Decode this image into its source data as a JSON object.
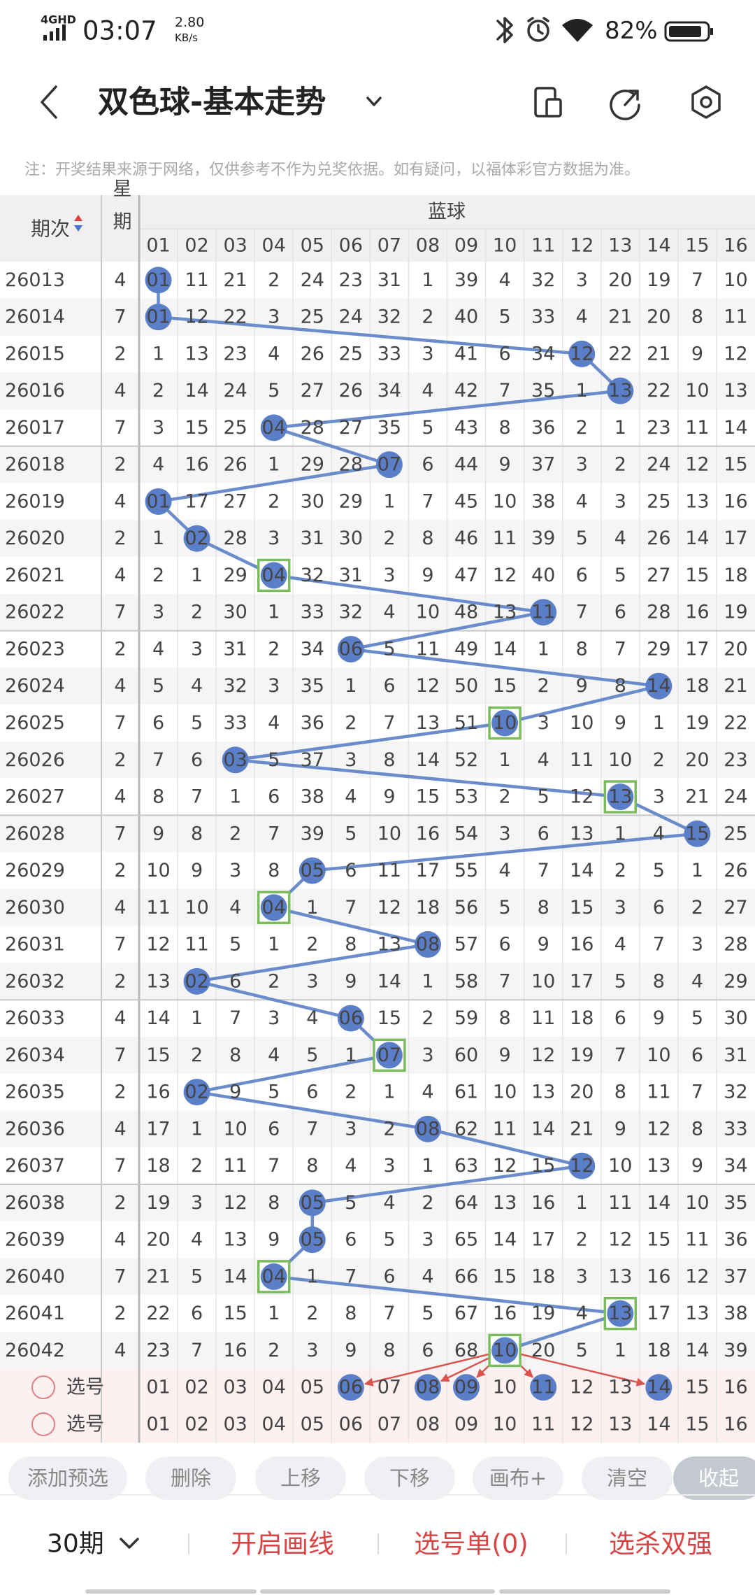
{
  "status_bar": {
    "network": "4GHD",
    "time": "03:07",
    "speed": "2.80",
    "speed_unit": "KB/s",
    "battery": "82%"
  },
  "header": {
    "title": "双色球-基本走势"
  },
  "note": "注：开奖结果来源于网络，仅供参考不作为兑奖依据。如有疑问，以福体彩官方数据为准。",
  "table": {
    "period_label": "期次",
    "weekday_label": "星期",
    "group_label": "蓝球",
    "columns": [
      "01",
      "02",
      "03",
      "04",
      "05",
      "06",
      "07",
      "08",
      "09",
      "10",
      "11",
      "12",
      "13",
      "14",
      "15",
      "16"
    ],
    "rows": [
      {
        "period": 26013,
        "weekday": 4,
        "cells": [
          {
            "text": "01",
            "ball": true
          },
          11,
          21,
          2,
          24,
          23,
          31,
          1,
          39,
          4,
          32,
          3,
          20,
          19,
          7,
          10
        ]
      },
      {
        "period": 26014,
        "weekday": 7,
        "cells": [
          {
            "text": "01",
            "ball": true
          },
          12,
          22,
          3,
          25,
          24,
          32,
          2,
          40,
          5,
          33,
          4,
          21,
          20,
          8,
          11
        ]
      },
      {
        "period": 26015,
        "weekday": 2,
        "cells": [
          1,
          13,
          23,
          4,
          26,
          25,
          33,
          3,
          41,
          6,
          34,
          {
            "text": "12",
            "ball": true
          },
          22,
          21,
          9,
          12
        ]
      },
      {
        "period": 26016,
        "weekday": 4,
        "cells": [
          2,
          14,
          24,
          5,
          27,
          26,
          34,
          4,
          42,
          7,
          35,
          1,
          {
            "text": "13",
            "ball": true
          },
          22,
          10,
          13
        ]
      },
      {
        "period": 26017,
        "weekday": 7,
        "cells": [
          3,
          15,
          25,
          {
            "text": "04",
            "ball": true
          },
          28,
          27,
          35,
          5,
          43,
          8,
          36,
          2,
          1,
          23,
          11,
          14
        ]
      },
      {
        "period": 26018,
        "weekday": 2,
        "cells": [
          4,
          16,
          26,
          1,
          29,
          28,
          {
            "text": "07",
            "ball": true
          },
          6,
          44,
          9,
          37,
          3,
          2,
          24,
          12,
          15
        ]
      },
      {
        "period": 26019,
        "weekday": 4,
        "cells": [
          {
            "text": "01",
            "ball": true
          },
          17,
          27,
          2,
          30,
          29,
          1,
          7,
          45,
          10,
          38,
          4,
          3,
          25,
          13,
          16
        ]
      },
      {
        "period": 26020,
        "weekday": 2,
        "cells": [
          1,
          {
            "text": "02",
            "ball": true
          },
          28,
          3,
          31,
          30,
          2,
          8,
          46,
          11,
          39,
          5,
          4,
          26,
          14,
          17
        ]
      },
      {
        "period": 26021,
        "weekday": 4,
        "cells": [
          2,
          1,
          29,
          {
            "text": "04",
            "ball": true,
            "boxed": true
          },
          32,
          31,
          3,
          9,
          47,
          12,
          40,
          6,
          5,
          27,
          15,
          18
        ]
      },
      {
        "period": 26022,
        "weekday": 7,
        "cells": [
          3,
          2,
          30,
          1,
          33,
          32,
          4,
          10,
          48,
          13,
          {
            "text": "11",
            "ball": true
          },
          7,
          6,
          28,
          16,
          19
        ]
      },
      {
        "period": 26023,
        "weekday": 2,
        "cells": [
          4,
          3,
          31,
          2,
          34,
          {
            "text": "06",
            "ball": true
          },
          5,
          11,
          49,
          14,
          1,
          8,
          7,
          29,
          17,
          20
        ]
      },
      {
        "period": 26024,
        "weekday": 4,
        "cells": [
          5,
          4,
          32,
          3,
          35,
          1,
          6,
          12,
          50,
          15,
          2,
          9,
          8,
          {
            "text": "14",
            "ball": true
          },
          18,
          21
        ]
      },
      {
        "period": 26025,
        "weekday": 7,
        "cells": [
          6,
          5,
          33,
          4,
          36,
          2,
          7,
          13,
          51,
          {
            "text": "10",
            "ball": true,
            "boxed": true
          },
          3,
          10,
          9,
          1,
          19,
          22
        ]
      },
      {
        "period": 26026,
        "weekday": 2,
        "cells": [
          7,
          6,
          {
            "text": "03",
            "ball": true
          },
          5,
          37,
          3,
          8,
          14,
          52,
          1,
          4,
          11,
          10,
          2,
          20,
          23
        ]
      },
      {
        "period": 26027,
        "weekday": 4,
        "cells": [
          8,
          7,
          1,
          6,
          38,
          4,
          9,
          15,
          53,
          2,
          5,
          12,
          {
            "text": "13",
            "ball": true,
            "boxed": true
          },
          3,
          21,
          24
        ]
      },
      {
        "period": 26028,
        "weekday": 7,
        "cells": [
          9,
          8,
          2,
          7,
          39,
          5,
          10,
          16,
          54,
          3,
          6,
          13,
          1,
          4,
          {
            "text": "15",
            "ball": true
          },
          25
        ]
      },
      {
        "period": 26029,
        "weekday": 2,
        "cells": [
          10,
          9,
          3,
          8,
          {
            "text": "05",
            "ball": true
          },
          6,
          11,
          17,
          55,
          4,
          7,
          14,
          2,
          5,
          1,
          26
        ]
      },
      {
        "period": 26030,
        "weekday": 4,
        "cells": [
          11,
          10,
          4,
          {
            "text": "04",
            "ball": true,
            "boxed": true
          },
          1,
          7,
          12,
          18,
          56,
          5,
          8,
          15,
          3,
          6,
          2,
          27
        ]
      },
      {
        "period": 26031,
        "weekday": 7,
        "cells": [
          12,
          11,
          5,
          1,
          2,
          8,
          13,
          {
            "text": "08",
            "ball": true
          },
          57,
          6,
          9,
          16,
          4,
          7,
          3,
          28
        ]
      },
      {
        "period": 26032,
        "weekday": 2,
        "cells": [
          13,
          {
            "text": "02",
            "ball": true
          },
          6,
          2,
          3,
          9,
          14,
          1,
          58,
          7,
          10,
          17,
          5,
          8,
          4,
          29
        ]
      },
      {
        "period": 26033,
        "weekday": 4,
        "cells": [
          14,
          1,
          7,
          3,
          4,
          {
            "text": "06",
            "ball": true
          },
          15,
          2,
          59,
          8,
          11,
          18,
          6,
          9,
          5,
          30
        ]
      },
      {
        "period": 26034,
        "weekday": 7,
        "cells": [
          15,
          2,
          8,
          4,
          5,
          1,
          {
            "text": "07",
            "ball": true,
            "boxed": true
          },
          3,
          60,
          9,
          12,
          19,
          7,
          10,
          6,
          31
        ]
      },
      {
        "period": 26035,
        "weekday": 2,
        "cells": [
          16,
          {
            "text": "02",
            "ball": true
          },
          9,
          5,
          6,
          2,
          1,
          4,
          61,
          10,
          13,
          20,
          8,
          11,
          7,
          32
        ]
      },
      {
        "period": 26036,
        "weekday": 4,
        "cells": [
          17,
          1,
          10,
          6,
          7,
          3,
          2,
          {
            "text": "08",
            "ball": true
          },
          62,
          11,
          14,
          21,
          9,
          12,
          8,
          33
        ]
      },
      {
        "period": 26037,
        "weekday": 7,
        "cells": [
          18,
          2,
          11,
          7,
          8,
          4,
          3,
          1,
          63,
          12,
          15,
          {
            "text": "12",
            "ball": true
          },
          10,
          13,
          9,
          34
        ]
      },
      {
        "period": 26038,
        "weekday": 2,
        "cells": [
          19,
          3,
          12,
          8,
          {
            "text": "05",
            "ball": true
          },
          5,
          4,
          2,
          64,
          13,
          16,
          1,
          11,
          14,
          10,
          35
        ]
      },
      {
        "period": 26039,
        "weekday": 4,
        "cells": [
          20,
          4,
          13,
          9,
          {
            "text": "05",
            "ball": true
          },
          6,
          5,
          3,
          65,
          14,
          17,
          2,
          12,
          15,
          11,
          36
        ]
      },
      {
        "period": 26040,
        "weekday": 7,
        "cells": [
          21,
          5,
          14,
          {
            "text": "04",
            "ball": true,
            "boxed": true
          },
          1,
          7,
          6,
          4,
          66,
          15,
          18,
          3,
          13,
          16,
          12,
          37
        ]
      },
      {
        "period": 26041,
        "weekday": 2,
        "cells": [
          22,
          6,
          15,
          1,
          2,
          8,
          7,
          5,
          67,
          16,
          19,
          4,
          {
            "text": "13",
            "ball": true,
            "boxed": true
          },
          17,
          13,
          38
        ]
      },
      {
        "period": 26042,
        "weekday": 4,
        "cells": [
          23,
          7,
          16,
          2,
          3,
          9,
          8,
          6,
          68,
          {
            "text": "10",
            "ball": true,
            "boxed": true
          },
          20,
          5,
          1,
          18,
          14,
          39
        ]
      }
    ],
    "pick_rows": [
      {
        "label": "选号",
        "cells": [
          "01",
          "02",
          "03",
          "04",
          "05",
          {
            "text": "06",
            "ball": true
          },
          "07",
          {
            "text": "08",
            "ball": true
          },
          {
            "text": "09",
            "ball": true
          },
          "10",
          {
            "text": "11",
            "ball": true
          },
          "12",
          "13",
          {
            "text": "14",
            "ball": true
          },
          "15",
          "16"
        ]
      },
      {
        "label": "选号",
        "cells": [
          "01",
          "02",
          "03",
          "04",
          "05",
          "06",
          "07",
          "08",
          "09",
          "10",
          "11",
          "12",
          "13",
          "14",
          "15",
          "16"
        ]
      }
    ]
  },
  "toolbar": [
    "添加预选",
    "删除",
    "上移",
    "下移",
    "画布+",
    "清空",
    "收起"
  ],
  "bottom_bar": {
    "periods": "30期",
    "tabs": [
      "开启画线",
      "选号单(0)",
      "选杀双强"
    ]
  }
}
